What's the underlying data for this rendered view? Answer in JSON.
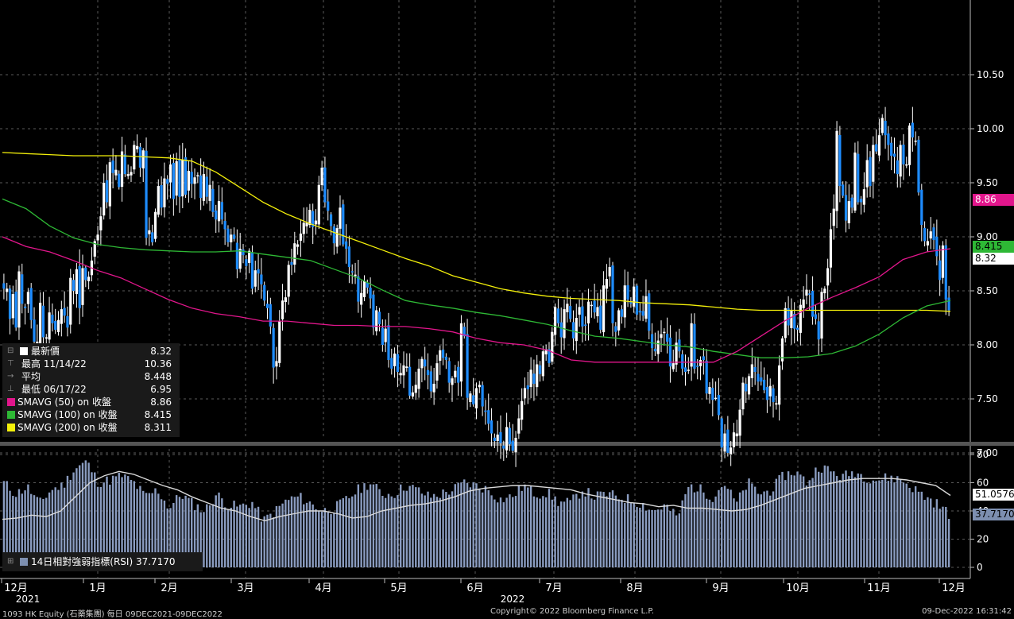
{
  "chart_data": [
    {
      "type": "candlestick",
      "title": "",
      "x_tick_labels": [
        "12月",
        "1月",
        "2月",
        "3月",
        "4月",
        "5月",
        "6月",
        "7月",
        "8月",
        "9月",
        "10月",
        "11月",
        "12月"
      ],
      "year_labels": [
        "2021",
        "2022"
      ],
      "y_ticks": [
        "10.50",
        "10.00",
        "9.50",
        "9.00",
        "8.50",
        "8.00",
        "7.50",
        "7.00"
      ],
      "ylim": [
        6.65,
        10.72
      ],
      "legend": [
        {
          "marker": "white",
          "label": "最新價",
          "value": "8.32"
        },
        {
          "marker": "high",
          "label": "最高 11/14/22",
          "value": "10.36"
        },
        {
          "marker": "avg",
          "label": "平均",
          "value": "8.448"
        },
        {
          "marker": "low",
          "label": "最低 06/17/22",
          "value": "6.95"
        },
        {
          "marker": "#e2168c",
          "label": "SMAVG (50)  on 收盤",
          "value": "8.86"
        },
        {
          "marker": "#2eb835",
          "label": "SMAVG (100)  on 收盤",
          "value": "8.415"
        },
        {
          "marker": "#f4f00a",
          "label": "SMAVG (200)  on 收盤",
          "value": "8.311"
        }
      ],
      "right_tags": [
        {
          "text": "8.86",
          "bg": "#e2168c",
          "color": "#ffffff"
        },
        {
          "text": "8.415",
          "bg": "#2eb835",
          "color": "#000000"
        },
        {
          "text": "8.32",
          "bg": "#ffffff",
          "color": "#000000"
        }
      ],
      "closes": [
        8.52,
        8.52,
        8.24,
        8.47,
        8.16,
        8.68,
        8.38,
        8.34,
        8.49,
        8.23,
        8.03,
        8.03,
        8.39,
        8.07,
        8.07,
        8.3,
        8.2,
        8.14,
        8.23,
        8.33,
        8.27,
        8.16,
        8.62,
        8.5,
        8.7,
        8.34,
        8.71,
        8.6,
        8.63,
        8.78,
        8.96,
        9.02,
        9.19,
        9.5,
        9.32,
        9.69,
        9.59,
        9.62,
        9.46,
        9.79,
        9.58,
        9.58,
        9.6,
        9.85,
        9.84,
        9.64,
        9.8,
        8.99,
        9.06,
        8.95,
        9.23,
        9.47,
        9.27,
        9.54,
        9.49,
        9.67,
        9.35,
        9.7,
        9.37,
        9.71,
        9.39,
        9.61,
        9.49,
        9.55,
        9.57,
        9.36,
        9.58,
        9.37,
        9.48,
        9.23,
        9.16,
        9.33,
        9.16,
        9.07,
        8.95,
        9.02,
        8.98,
        8.7,
        8.89,
        8.83,
        8.73,
        8.87,
        8.52,
        8.69,
        8.66,
        8.56,
        8.41,
        8.34,
        8.17,
        7.79,
        7.85,
        8.22,
        8.41,
        8.44,
        8.74,
        8.74,
        8.94,
        8.93,
        9.03,
        9.13,
        9.13,
        9.25,
        9.09,
        9.15,
        9.48,
        9.64,
        9.32,
        9.24,
        9.1,
        8.94,
        9.08,
        9.27,
        8.93,
        8.89,
        8.72,
        8.67,
        8.65,
        8.4,
        8.48,
        8.59,
        8.53,
        8.43,
        8.16,
        8.32,
        8.19,
        8.0,
        8.15,
        7.86,
        7.78,
        7.92,
        7.75,
        7.74,
        7.81,
        7.8,
        7.53,
        7.56,
        7.63,
        7.78,
        7.87,
        7.8,
        7.72,
        7.57,
        7.64,
        7.83,
        7.95,
        7.88,
        7.86,
        7.65,
        7.69,
        7.76,
        7.65,
        8.2,
        8.08,
        7.51,
        7.55,
        7.45,
        7.6,
        7.63,
        7.43,
        7.38,
        7.27,
        7.18,
        7.11,
        7.17,
        7.09,
        7.04,
        7.24,
        7.08,
        7.02,
        7.14,
        7.32,
        7.48,
        7.6,
        7.59,
        7.77,
        7.64,
        7.82,
        7.73,
        7.94,
        7.96,
        7.83,
        8.12,
        8.35,
        8.2,
        8.07,
        8.33,
        8.38,
        8.24,
        8.06,
        8.25,
        8.35,
        8.17,
        8.18,
        8.4,
        8.37,
        8.3,
        8.35,
        8.14,
        8.55,
        8.61,
        8.72,
        8.2,
        8.12,
        8.32,
        8.26,
        8.55,
        8.42,
        8.38,
        8.54,
        8.28,
        8.3,
        8.27,
        8.45,
        8.13,
        7.97,
        7.94,
        8.04,
        8.1,
        8.12,
        8.03,
        7.8,
        7.83,
        8.02,
        7.94,
        7.78,
        7.75,
        7.77,
        8.2,
        7.78,
        7.8,
        7.86,
        7.86,
        7.55,
        7.61,
        7.49,
        7.51,
        7.35,
        7.05,
        7.18,
        7.0,
        7.05,
        7.19,
        7.18,
        7.4,
        7.65,
        7.57,
        7.71,
        7.82,
        7.75,
        7.66,
        7.66,
        7.58,
        7.49,
        7.62,
        7.47,
        7.46,
        7.81,
        8.06,
        8.34,
        8.18,
        8.32,
        8.15,
        8.14,
        8.37,
        8.42,
        8.51,
        8.47,
        8.26,
        8.24,
        8.05,
        8.49,
        8.52,
        8.71,
        9.07,
        9.26,
        9.98,
        9.47,
        9.38,
        9.15,
        9.33,
        9.27,
        9.78,
        9.32,
        9.32,
        9.44,
        9.71,
        9.47,
        9.85,
        9.79,
        9.94,
        10.1,
        9.94,
        9.85,
        9.75,
        9.74,
        9.58,
        9.85,
        9.67,
        9.67,
        10.03,
        9.92,
        9.89,
        9.41,
        9.11,
        8.96,
        8.96,
        9.05,
        8.97,
        8.82,
        8.6,
        8.92,
        8.42,
        8.32
      ],
      "sma50": [
        9.0,
        8.91,
        8.86,
        8.78,
        8.69,
        8.62,
        8.52,
        8.42,
        8.34,
        8.29,
        8.26,
        8.22,
        8.22,
        8.2,
        8.18,
        8.18,
        8.17,
        8.17,
        8.15,
        8.12,
        8.06,
        8.02,
        8.0,
        7.95,
        7.86,
        7.84,
        7.84,
        7.84,
        7.84,
        7.84,
        7.84,
        7.94,
        8.08,
        8.22,
        8.34,
        8.44,
        8.53,
        8.63,
        8.79,
        8.86,
        8.89
      ],
      "sma100": [
        9.35,
        9.26,
        9.1,
        8.99,
        8.93,
        8.9,
        8.88,
        8.87,
        8.86,
        8.86,
        8.87,
        8.84,
        8.81,
        8.78,
        8.7,
        8.62,
        8.51,
        8.41,
        8.37,
        8.34,
        8.3,
        8.27,
        8.23,
        8.19,
        8.13,
        8.08,
        8.06,
        8.03,
        8.0,
        7.98,
        7.94,
        7.91,
        7.88,
        7.88,
        7.89,
        7.92,
        7.99,
        8.1,
        8.25,
        8.36,
        8.41
      ],
      "sma200": [
        9.78,
        9.77,
        9.76,
        9.75,
        9.75,
        9.75,
        9.74,
        9.73,
        9.7,
        9.6,
        9.46,
        9.32,
        9.21,
        9.12,
        9.04,
        8.96,
        8.88,
        8.8,
        8.73,
        8.64,
        8.58,
        8.52,
        8.48,
        8.45,
        8.43,
        8.42,
        8.41,
        8.39,
        8.38,
        8.37,
        8.35,
        8.33,
        8.32,
        8.32,
        8.32,
        8.32,
        8.32,
        8.32,
        8.32,
        8.32,
        8.31
      ]
    },
    {
      "type": "bar",
      "title": "",
      "y_ticks": [
        "80",
        "60",
        "40",
        "20",
        "0"
      ],
      "ylim": [
        -5,
        85
      ],
      "legend_label": "14日相對強弱指標(RSI) 37.7170",
      "right_tags": [
        {
          "text": "51.0576",
          "bg": "#ffffff",
          "color": "#000000"
        },
        {
          "text": "37.7170",
          "bg": "#7d8fb0",
          "color": "#000000"
        }
      ],
      "rsi_anchors": [
        60,
        52,
        57,
        45,
        55,
        58,
        70,
        75,
        60,
        62,
        65,
        60,
        50,
        55,
        42,
        52,
        45,
        40,
        52,
        44,
        43,
        46,
        33,
        40,
        48,
        50,
        45,
        40,
        42,
        48,
        55,
        60,
        52,
        52,
        58,
        55,
        50,
        52,
        55,
        60,
        58,
        55,
        48,
        50,
        58,
        52,
        53,
        46,
        46,
        55,
        50,
        52,
        50,
        48,
        45,
        40,
        44,
        35,
        58,
        55,
        50,
        60,
        45,
        60,
        52,
        55,
        65,
        68,
        60,
        72,
        68,
        64,
        68,
        64,
        62,
        64,
        62,
        56,
        50,
        45,
        38
      ],
      "rsi_ma_anchors": [
        34,
        35,
        37,
        36,
        40,
        50,
        60,
        65,
        68,
        66,
        62,
        58,
        55,
        50,
        46,
        42,
        40,
        36,
        33,
        36,
        38,
        40,
        40,
        38,
        35,
        36,
        40,
        42,
        44,
        45,
        47,
        50,
        54,
        56,
        57,
        58,
        58,
        57,
        56,
        55,
        52,
        50,
        48,
        46,
        45,
        43,
        44,
        42,
        42,
        41,
        40,
        41,
        44,
        48,
        52,
        56,
        58,
        60,
        62,
        63,
        63,
        63,
        62,
        60,
        58,
        51
      ]
    }
  ],
  "x_tick_labels_bottom": [
    "12月",
    "1月",
    "2月",
    "3月",
    "4月",
    "5月",
    "6月",
    "7月",
    "8月",
    "9月",
    "10月",
    "11月",
    "12月"
  ],
  "footer": {
    "left": "1093 HK Equity (石藥集團)  每日 09DEC2021-09DEC2022",
    "center": "Copyright© 2022 Bloomberg Finance L.P.",
    "right": "09-Dec-2022 16:31:42"
  },
  "colors": {
    "up": "#ffffff",
    "down": "#1e8cff",
    "sma50": "#e2168c",
    "sma100": "#2eb835",
    "sma200": "#f4f00a",
    "rsi_bars": "#8a9cc0",
    "rsi_ma": "#d9d9d9",
    "grid": "#5a5a5a"
  }
}
